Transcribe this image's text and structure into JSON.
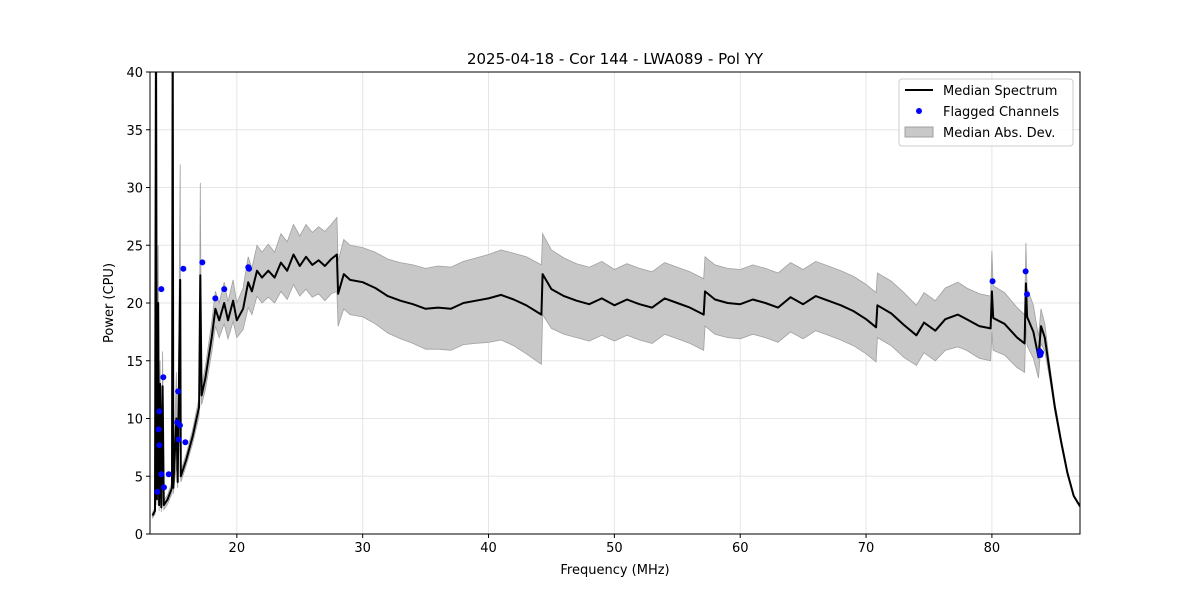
{
  "chart_data": {
    "type": "line",
    "title": "2025-04-18 - Cor 144 - LWA089 - Pol YY",
    "xlabel": "Frequency (MHz)",
    "ylabel": "Power (CPU)",
    "xlim": [
      13.1,
      87.0
    ],
    "ylim": [
      0,
      40
    ],
    "xticks": [
      20,
      30,
      40,
      50,
      60,
      70,
      80
    ],
    "yticks": [
      0,
      5,
      10,
      15,
      20,
      25,
      30,
      35,
      40
    ],
    "grid": true,
    "legend_position": "top-right",
    "legend": [
      "Median Spectrum",
      "Flagged Channels",
      "Median Abs. Dev."
    ],
    "colors": {
      "median": "#000000",
      "flagged": "#0000ff",
      "mad": "#c8c8c8",
      "mad_edge": "#a0a0a0"
    },
    "spectrum": {
      "freq": [
        13.3,
        13.5,
        13.58,
        13.65,
        13.75,
        13.82,
        13.9,
        14.0,
        14.1,
        14.2,
        14.5,
        14.85,
        14.9,
        14.95,
        15.2,
        15.3,
        15.5,
        15.55,
        16,
        16.5,
        17.0,
        17.1,
        17.2,
        17.5,
        18,
        18.3,
        18.6,
        19,
        19.3,
        19.7,
        20,
        20.5,
        20.9,
        21.2,
        21.6,
        22,
        22.5,
        23,
        23.5,
        24,
        24.5,
        25,
        25.5,
        26,
        26.5,
        27,
        27.5,
        27.95,
        28.05,
        28.5,
        29,
        30,
        31,
        32,
        33,
        34,
        35,
        36,
        37,
        38,
        39,
        40,
        41,
        42,
        43,
        44.2,
        44.3,
        45,
        46,
        47,
        48,
        49,
        50,
        51,
        52,
        53,
        54,
        55,
        56,
        57.1,
        57.2,
        58,
        59,
        60,
        61,
        62,
        63,
        64,
        65,
        66,
        67,
        68,
        69,
        70,
        70.8,
        70.9,
        72,
        73,
        74,
        74.6,
        75.5,
        76.3,
        77.3,
        78,
        79,
        79.9,
        80.0,
        80.1,
        81,
        82,
        82.6,
        82.7,
        82.8,
        83.3,
        83.7,
        83.9,
        84.2,
        84.6,
        85,
        85.5,
        86,
        86.5,
        87
      ],
      "median": [
        1.6,
        2.0,
        45,
        3,
        20,
        2.5,
        13,
        2.3,
        12.8,
        2.5,
        3,
        4,
        45,
        4,
        10,
        4.5,
        22,
        5,
        6.5,
        8.5,
        11,
        22.4,
        12,
        13.5,
        17,
        19.5,
        18.5,
        20,
        18.5,
        20.2,
        18.5,
        19.5,
        21.8,
        21,
        22.8,
        22.2,
        22.8,
        22.2,
        23.5,
        22.8,
        24.2,
        23.2,
        24,
        23.3,
        23.7,
        23.2,
        23.8,
        24.2,
        20.8,
        22.5,
        22,
        21.8,
        21.3,
        20.6,
        20.2,
        19.9,
        19.5,
        19.6,
        19.5,
        20,
        20.2,
        20.4,
        20.7,
        20.3,
        19.8,
        19.0,
        22.5,
        21.2,
        20.6,
        20.2,
        19.9,
        20.4,
        19.8,
        20.3,
        19.9,
        19.6,
        20.4,
        20,
        19.6,
        19,
        21,
        20.3,
        20,
        19.9,
        20.3,
        20,
        19.6,
        20.5,
        19.9,
        20.6,
        20.2,
        19.8,
        19.3,
        18.6,
        17.9,
        19.8,
        19.1,
        18.1,
        17.2,
        18.3,
        17.6,
        18.6,
        19,
        18.6,
        18,
        17.8,
        21,
        18.7,
        18.2,
        17,
        16.5,
        21.7,
        18.8,
        17.5,
        15.3,
        18,
        17,
        14,
        11,
        8,
        5.3,
        3.3,
        2.4
      ],
      "mad": [
        0.2,
        0.3,
        2,
        0.5,
        5,
        0.5,
        2,
        0.4,
        3,
        0.4,
        0.4,
        0.5,
        3,
        0.5,
        4,
        0.5,
        10,
        0.5,
        0.5,
        0.6,
        0.8,
        8,
        0.8,
        1,
        1.3,
        1.5,
        1.5,
        1.8,
        1.6,
        1.8,
        1.5,
        1.8,
        2.2,
        2,
        2.2,
        2.2,
        2.3,
        2.2,
        2.5,
        2.5,
        2.6,
        2.6,
        2.8,
        2.8,
        2.9,
        3,
        3,
        3.2,
        2.8,
        3,
        3,
        3,
        3.1,
        3.2,
        3.3,
        3.4,
        3.5,
        3.6,
        3.6,
        3.6,
        3.7,
        3.8,
        3.9,
        4,
        4.2,
        4.3,
        3.5,
        3.4,
        3.3,
        3.2,
        3.2,
        3.2,
        3.1,
        3.1,
        3.1,
        3.1,
        3.1,
        3.1,
        3.1,
        3.1,
        3,
        3,
        3,
        3,
        3,
        3,
        3,
        3,
        3,
        3,
        3,
        3,
        3,
        3,
        3,
        2.8,
        2.8,
        2.8,
        2.6,
        2.6,
        2.6,
        2.7,
        2.8,
        2.7,
        2.8,
        2.8,
        3.5,
        2.8,
        2.7,
        2.6,
        2.5,
        3.5,
        2.5,
        2.3,
        1.8,
        1.5,
        1.2,
        0.6,
        0.4,
        0.3,
        0.2,
        0.1,
        0.1
      ]
    },
    "flagged": {
      "freq": [
        13.68,
        13.84,
        13.79,
        13.84,
        14.0,
        14.16,
        14.0,
        14.21,
        14.59,
        15.27,
        15.33,
        15.48,
        15.38,
        15.75,
        15.91,
        17.26,
        18.29,
        19.0,
        20.91,
        20.97,
        80.05,
        82.68,
        82.79,
        83.79,
        83.85,
        83.9
      ],
      "power": [
        3.66,
        7.68,
        9.06,
        10.62,
        21.2,
        13.57,
        5.17,
        4.04,
        5.17,
        9.67,
        12.35,
        9.41,
        8.18,
        22.97,
        7.94,
        23.52,
        20.4,
        21.2,
        23.1,
        22.96,
        21.88,
        22.74,
        20.76,
        15.83,
        15.5,
        15.7
      ]
    }
  }
}
